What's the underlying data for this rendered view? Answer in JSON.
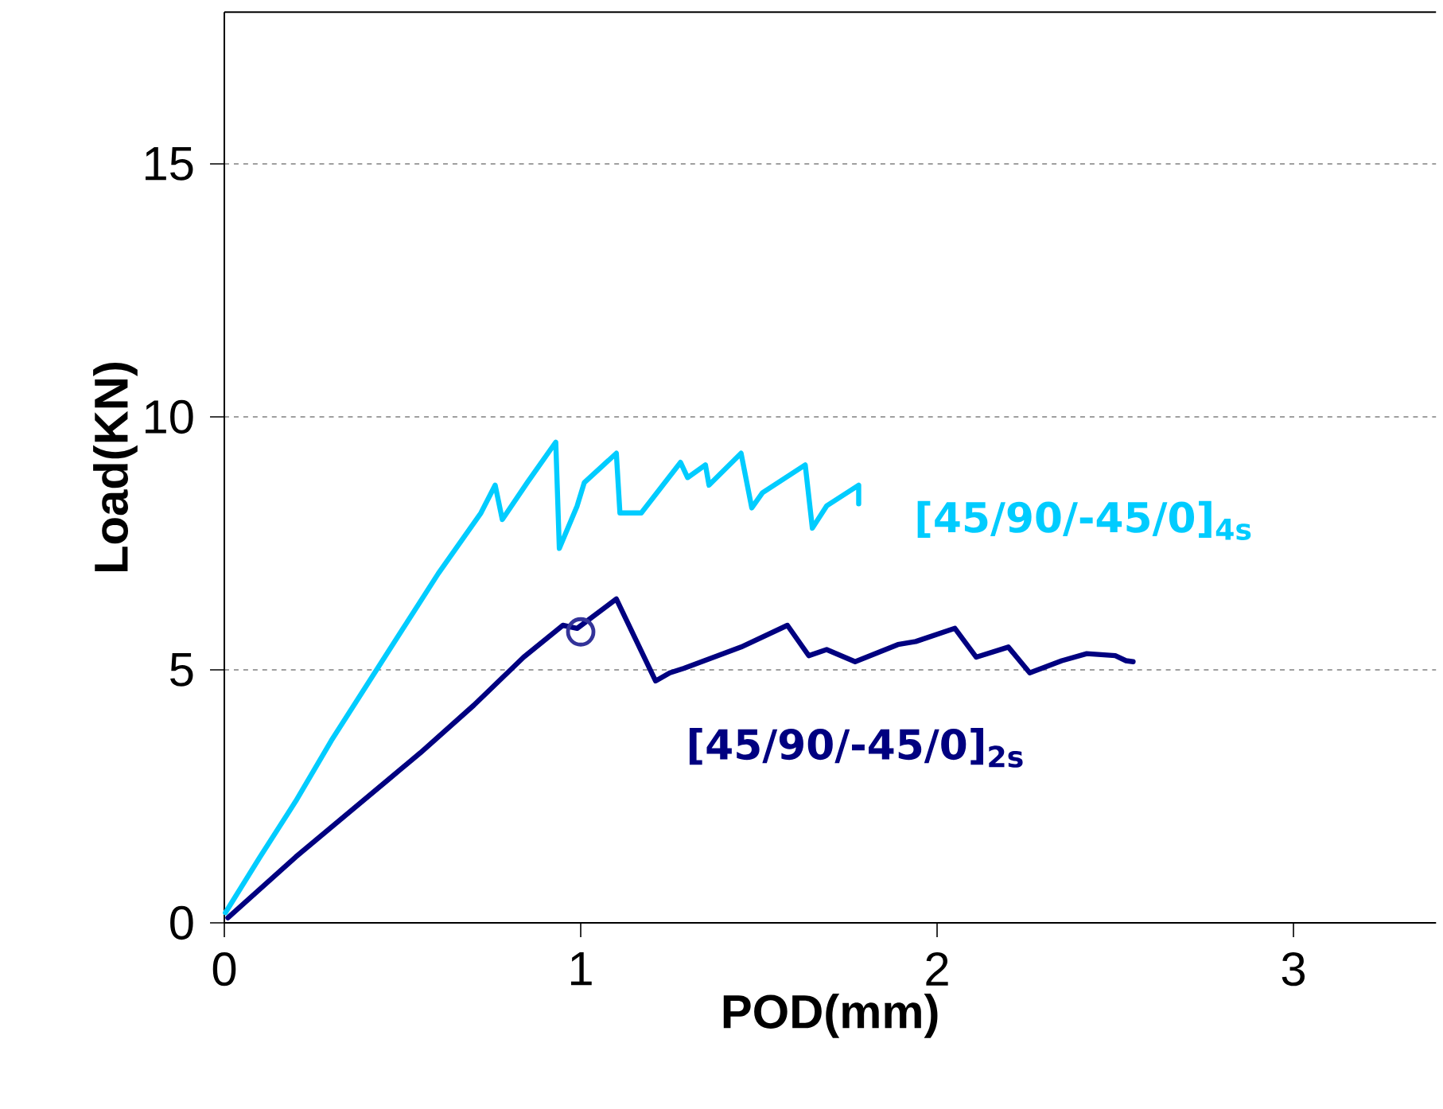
{
  "chart_data": {
    "type": "line",
    "xlabel": "POD(mm)",
    "ylabel": "Load(KN)",
    "xlim": [
      0,
      3.4
    ],
    "ylim": [
      0,
      18
    ],
    "xticks": [
      0,
      1,
      2,
      3
    ],
    "yticks": [
      0,
      5,
      10,
      15
    ],
    "grid": "y",
    "line_style": "solid",
    "series": [
      {
        "name": "[45/90/-45/0]$_{4s}$",
        "color": "#00ccff",
        "x": [
          0.003,
          0.1,
          0.2,
          0.3,
          0.4,
          0.5,
          0.6,
          0.72,
          0.76,
          0.78,
          0.85,
          0.93,
          0.94,
          0.99,
          1.01,
          1.1,
          1.11,
          1.17,
          1.28,
          1.3,
          1.35,
          1.36,
          1.45,
          1.48,
          1.51,
          1.63,
          1.65,
          1.69,
          1.78,
          1.78
        ],
        "values": [
          0.2,
          1.3,
          2.4,
          3.6,
          4.7,
          5.8,
          6.9,
          8.1,
          8.65,
          7.97,
          8.7,
          9.5,
          7.4,
          8.24,
          8.7,
          9.28,
          8.1,
          8.1,
          9.1,
          8.8,
          9.05,
          8.65,
          9.28,
          8.2,
          8.5,
          9.05,
          7.8,
          8.24,
          8.65,
          8.28
        ]
      },
      {
        "name": "[45/90/-45/0]$_{2s}$",
        "color": "#000080",
        "x": [
          0.01,
          0.2,
          0.46,
          0.55,
          0.7,
          0.84,
          0.95,
          0.99,
          1.1,
          1.21,
          1.25,
          1.29,
          1.45,
          1.58,
          1.64,
          1.69,
          1.77,
          1.89,
          1.94,
          2.05,
          2.11,
          2.2,
          2.26,
          2.35,
          2.42,
          2.5,
          2.53,
          2.55
        ],
        "values": [
          0.1,
          1.3,
          2.83,
          3.36,
          4.3,
          5.25,
          5.88,
          5.82,
          6.4,
          4.78,
          4.94,
          5.03,
          5.45,
          5.88,
          5.28,
          5.4,
          5.16,
          5.5,
          5.56,
          5.82,
          5.25,
          5.45,
          4.94,
          5.18,
          5.32,
          5.28,
          5.18,
          5.16
        ]
      },
      {
        "type": "scatter",
        "color": "#333399",
        "marker": "circle",
        "x": [
          1.0
        ],
        "values": [
          5.75
        ]
      }
    ]
  }
}
